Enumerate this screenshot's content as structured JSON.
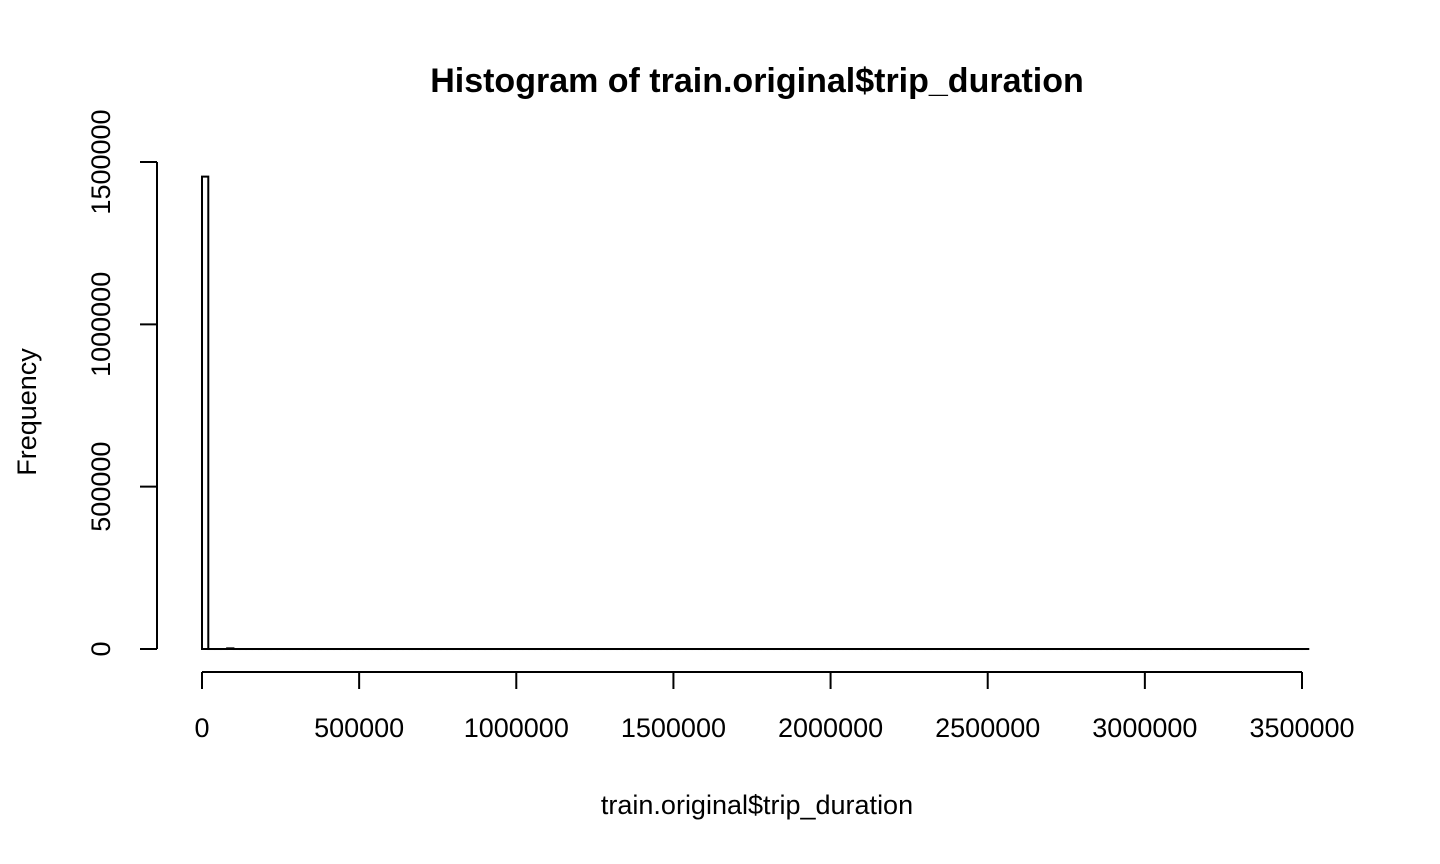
{
  "chart_data": {
    "type": "bar",
    "title": "Histogram of train.original$trip_duration",
    "xlabel": "train.original$trip_duration",
    "ylabel": "Frequency",
    "x_ticks": [
      0,
      500000,
      1000000,
      1500000,
      2000000,
      2500000,
      3000000,
      3500000
    ],
    "x_tick_labels": [
      "0",
      "500000",
      "1000000",
      "1500000",
      "2000000",
      "2500000",
      "3000000",
      "3500000"
    ],
    "y_ticks": [
      0,
      500000,
      1000000,
      1500000
    ],
    "y_tick_labels": [
      "0",
      "500000",
      "1000000",
      "1500000"
    ],
    "xlim": [
      0,
      3500000
    ],
    "ylim": [
      0,
      1500000
    ],
    "bin_width": 20000,
    "bins": [
      {
        "x_start": 0,
        "x_end": 20000,
        "count": 1455000
      },
      {
        "x_start": 80000,
        "x_end": 100000,
        "count": 2000
      }
    ],
    "grid": false,
    "legend": "none"
  }
}
